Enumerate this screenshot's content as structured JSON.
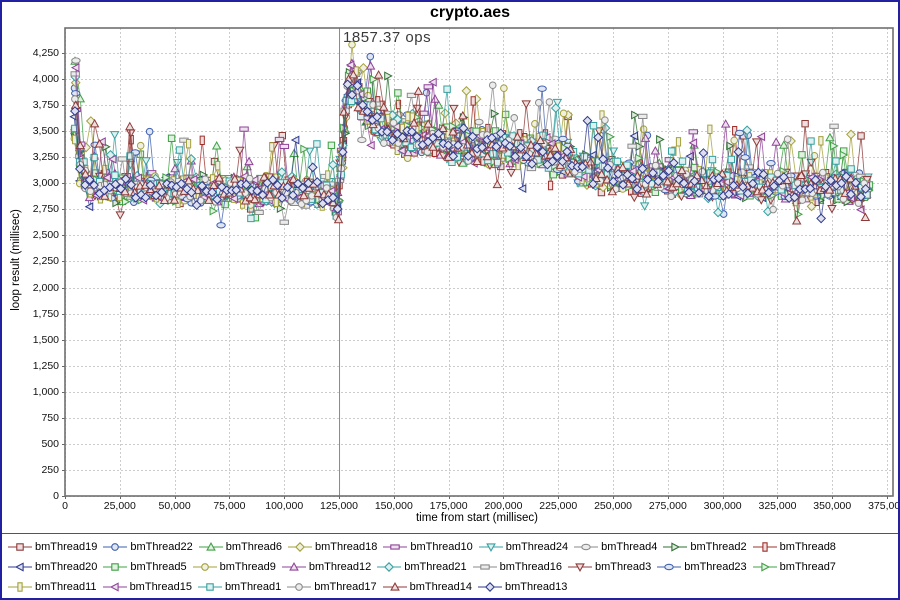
{
  "chart_data": {
    "type": "line",
    "title": "crypto.aes",
    "xlabel": "time from start (millisec)",
    "ylabel": "loop result (millisec)",
    "xlim": [
      0,
      377700
    ],
    "ylim": [
      0,
      4490
    ],
    "grid": "dashed",
    "legend_position": "bottom",
    "x_ticks": [
      0,
      25000,
      50000,
      75000,
      100000,
      125000,
      150000,
      175000,
      200000,
      225000,
      250000,
      275000,
      300000,
      325000,
      350000,
      375000
    ],
    "x_tick_labels": [
      "0",
      "25,000",
      "50,000",
      "75,000",
      "100,000",
      "125,000",
      "150,000",
      "175,000",
      "200,000",
      "225,000",
      "250,000",
      "275,000",
      "300,000",
      "325,000",
      "350,000",
      "375,000"
    ],
    "y_ticks": [
      0,
      250,
      500,
      750,
      1000,
      1250,
      1500,
      1750,
      2000,
      2250,
      2500,
      2750,
      3000,
      3250,
      3500,
      3750,
      4000,
      4250
    ],
    "y_tick_labels": [
      "0",
      "250",
      "500",
      "750",
      "1,000",
      "1,250",
      "1,500",
      "1,750",
      "2,000",
      "2,250",
      "2,500",
      "2,750",
      "3,000",
      "3,250",
      "3,500",
      "3,750",
      "4,000",
      "4,250"
    ],
    "annotation": {
      "text": "1857.37 ops",
      "x": 125000
    },
    "marker_line": {
      "x": 125000,
      "color": "#8a8a8a"
    },
    "series": [
      {
        "name": "bmThread19",
        "color": "#8E3A38",
        "shape": "square"
      },
      {
        "name": "bmThread22",
        "color": "#3D5FAE",
        "shape": "circle"
      },
      {
        "name": "bmThread6",
        "color": "#3FA044",
        "shape": "triangle-up"
      },
      {
        "name": "bmThread18",
        "color": "#A3A03B",
        "shape": "diamond"
      },
      {
        "name": "bmThread10",
        "color": "#8E4397",
        "shape": "rect-h"
      },
      {
        "name": "bmThread24",
        "color": "#37A0A0",
        "shape": "triangle-down"
      },
      {
        "name": "bmThread4",
        "color": "#8A8A8A",
        "shape": "ellipse"
      },
      {
        "name": "bmThread2",
        "color": "#2F6F33",
        "shape": "triangle-right"
      },
      {
        "name": "bmThread8",
        "color": "#9E302B",
        "shape": "rect-v"
      },
      {
        "name": "bmThread20",
        "color": "#2F3B8F",
        "shape": "triangle-left"
      },
      {
        "name": "bmThread5",
        "color": "#3FA044",
        "shape": "square"
      },
      {
        "name": "bmThread9",
        "color": "#A3A03B",
        "shape": "circle"
      },
      {
        "name": "bmThread12",
        "color": "#8E4397",
        "shape": "triangle-up"
      },
      {
        "name": "bmThread21",
        "color": "#37A0A0",
        "shape": "diamond"
      },
      {
        "name": "bmThread16",
        "color": "#8A8A8A",
        "shape": "rect-h"
      },
      {
        "name": "bmThread3",
        "color": "#8E3A38",
        "shape": "triangle-down"
      },
      {
        "name": "bmThread23",
        "color": "#3D5FAE",
        "shape": "ellipse"
      },
      {
        "name": "bmThread7",
        "color": "#3FA044",
        "shape": "triangle-right"
      },
      {
        "name": "bmThread11",
        "color": "#A3A03B",
        "shape": "rect-v"
      },
      {
        "name": "bmThread15",
        "color": "#8E4397",
        "shape": "triangle-left"
      },
      {
        "name": "bmThread1",
        "color": "#37A0A0",
        "shape": "square"
      },
      {
        "name": "bmThread17",
        "color": "#8A8A8A",
        "shape": "circle"
      },
      {
        "name": "bmThread14",
        "color": "#8E3A38",
        "shape": "triangle-up"
      },
      {
        "name": "bmThread13",
        "color": "#2F3B8F",
        "shape": "diamond"
      }
    ],
    "marker_fill_tint": 0.84,
    "sampling": {
      "x_start_ms": 4500,
      "x_end_ms": 367000,
      "interval_ms": 2300
    },
    "trend": {
      "x": [
        4500,
        6500,
        10000,
        30000,
        60000,
        100000,
        121000,
        124000,
        126500,
        129000,
        132000,
        136000,
        142000,
        150000,
        165000,
        185000,
        205000,
        220000,
        235000,
        255000,
        280000,
        310000,
        340000,
        367000
      ],
      "mean": [
        3750,
        3200,
        2980,
        2950,
        2940,
        2930,
        2900,
        2780,
        3300,
        3900,
        3980,
        3750,
        3600,
        3500,
        3430,
        3350,
        3330,
        3300,
        3150,
        3060,
        3010,
        2990,
        2970,
        2960
      ],
      "spread": [
        480,
        350,
        220,
        200,
        200,
        200,
        190,
        170,
        350,
        330,
        280,
        300,
        280,
        270,
        260,
        250,
        250,
        250,
        230,
        210,
        200,
        200,
        200,
        220
      ]
    },
    "colors": {
      "frame_border": "#2121A2",
      "plot_border": "#707070",
      "gridline": "#cccccc",
      "tick": "#666666",
      "marker_line": "#8a8a8a",
      "text": "#000000",
      "annotation_text": "#3a3a3a",
      "background": "#ffffff"
    }
  }
}
